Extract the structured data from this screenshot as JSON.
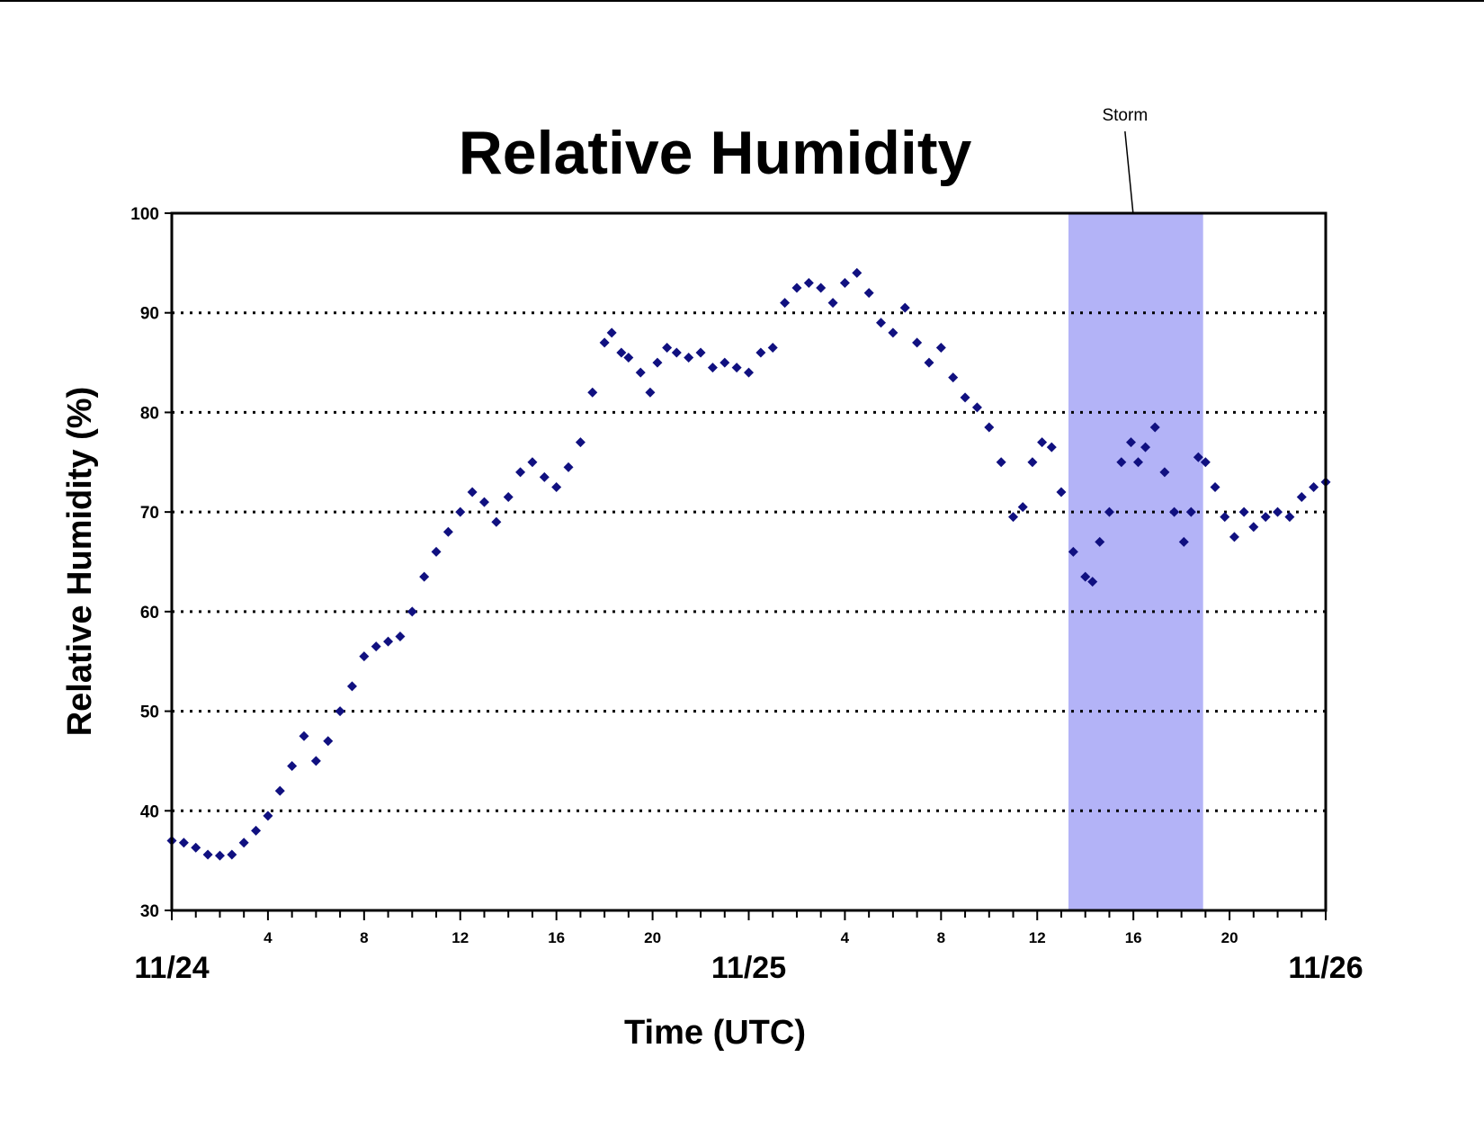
{
  "colors": {
    "series": "#101080",
    "storm_band": "#b3b3f7",
    "grid": "#000000",
    "axis": "#000000"
  },
  "chart_data": {
    "type": "scatter",
    "title": "Relative Humidity",
    "xlabel": "Time (UTC)",
    "ylabel": "Relative Humidity (%)",
    "ylim": [
      30,
      100
    ],
    "xlim_hours": [
      0,
      48
    ],
    "yticks": [
      30,
      40,
      50,
      60,
      70,
      80,
      90,
      100
    ],
    "grid": "horizontal dotted at 40, 50, 60, 70, 80, 90",
    "hour_tick_labels": [
      {
        "hour": 4,
        "label": "4"
      },
      {
        "hour": 8,
        "label": "8"
      },
      {
        "hour": 12,
        "label": "12"
      },
      {
        "hour": 16,
        "label": "16"
      },
      {
        "hour": 20,
        "label": "20"
      },
      {
        "hour": 28,
        "label": "4"
      },
      {
        "hour": 32,
        "label": "8"
      },
      {
        "hour": 36,
        "label": "12"
      },
      {
        "hour": 40,
        "label": "16"
      },
      {
        "hour": 44,
        "label": "20"
      }
    ],
    "day_labels": [
      {
        "hour": 0,
        "label": "11/24"
      },
      {
        "hour": 24,
        "label": "11/25"
      },
      {
        "hour": 48,
        "label": "11/26"
      }
    ],
    "annotation": {
      "text": "Storm",
      "start_hour": 37.3,
      "end_hour": 42.9
    },
    "series": [
      {
        "points": [
          [
            0,
            37
          ],
          [
            0.5,
            36.8
          ],
          [
            1,
            36.3
          ],
          [
            1.5,
            35.6
          ],
          [
            2,
            35.5
          ],
          [
            2.5,
            35.6
          ],
          [
            3,
            36.8
          ],
          [
            3.5,
            38
          ],
          [
            4,
            39.5
          ],
          [
            4.5,
            42
          ],
          [
            5,
            44.5
          ],
          [
            5.5,
            47.5
          ],
          [
            6,
            45
          ],
          [
            6.5,
            47
          ],
          [
            7,
            50
          ],
          [
            7.5,
            52.5
          ],
          [
            8,
            55.5
          ],
          [
            8.5,
            56.5
          ],
          [
            9,
            57
          ],
          [
            9.5,
            57.5
          ],
          [
            10,
            60
          ],
          [
            10.5,
            63.5
          ],
          [
            11,
            66
          ],
          [
            11.5,
            68
          ],
          [
            12,
            70
          ],
          [
            12.5,
            72
          ],
          [
            13,
            71
          ],
          [
            13.5,
            69
          ],
          [
            14,
            71.5
          ],
          [
            14.5,
            74
          ],
          [
            15,
            75
          ],
          [
            15.5,
            73.5
          ],
          [
            16,
            72.5
          ],
          [
            16.5,
            74.5
          ],
          [
            17,
            77
          ],
          [
            17.5,
            82
          ],
          [
            18,
            87
          ],
          [
            18.3,
            88
          ],
          [
            18.7,
            86
          ],
          [
            19,
            85.5
          ],
          [
            19.5,
            84
          ],
          [
            19.9,
            82
          ],
          [
            20.2,
            85
          ],
          [
            20.6,
            86.5
          ],
          [
            21,
            86
          ],
          [
            21.5,
            85.5
          ],
          [
            22,
            86
          ],
          [
            22.5,
            84.5
          ],
          [
            23,
            85
          ],
          [
            23.5,
            84.5
          ],
          [
            24,
            84
          ],
          [
            24.5,
            86
          ],
          [
            25,
            86.5
          ],
          [
            25.5,
            91
          ],
          [
            26,
            92.5
          ],
          [
            26.5,
            93
          ],
          [
            27,
            92.5
          ],
          [
            27.5,
            91
          ],
          [
            28,
            93
          ],
          [
            28.5,
            94
          ],
          [
            29,
            92
          ],
          [
            29.5,
            89
          ],
          [
            30,
            88
          ],
          [
            30.5,
            90.5
          ],
          [
            31,
            87
          ],
          [
            31.5,
            85
          ],
          [
            32,
            86.5
          ],
          [
            32.5,
            83.5
          ],
          [
            33,
            81.5
          ],
          [
            33.5,
            80.5
          ],
          [
            34,
            78.5
          ],
          [
            34.5,
            75
          ],
          [
            35,
            69.5
          ],
          [
            35.4,
            70.5
          ],
          [
            35.8,
            75
          ],
          [
            36.2,
            77
          ],
          [
            36.6,
            76.5
          ],
          [
            37,
            72
          ],
          [
            37.5,
            66
          ],
          [
            38,
            63.5
          ],
          [
            38.3,
            63
          ],
          [
            38.6,
            67
          ],
          [
            39,
            70
          ],
          [
            39.5,
            75
          ],
          [
            39.9,
            77
          ],
          [
            40.2,
            75
          ],
          [
            40.5,
            76.5
          ],
          [
            40.9,
            78.5
          ],
          [
            41.3,
            74
          ],
          [
            41.7,
            70
          ],
          [
            42.1,
            67
          ],
          [
            42.4,
            70
          ],
          [
            42.7,
            75.5
          ],
          [
            43,
            75
          ],
          [
            43.4,
            72.5
          ],
          [
            43.8,
            69.5
          ],
          [
            44.2,
            67.5
          ],
          [
            44.6,
            70
          ],
          [
            45,
            68.5
          ],
          [
            45.5,
            69.5
          ],
          [
            46,
            70
          ],
          [
            46.5,
            69.5
          ],
          [
            47,
            71.5
          ],
          [
            47.5,
            72.5
          ],
          [
            48,
            73
          ]
        ]
      }
    ]
  }
}
